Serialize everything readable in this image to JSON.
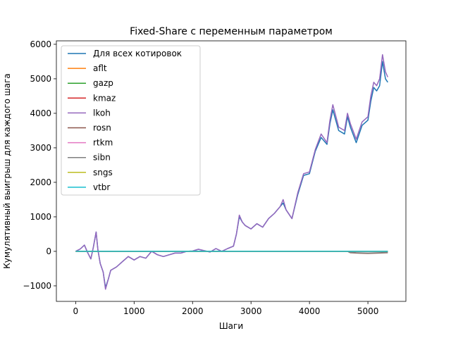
{
  "chart_data": {
    "type": "line",
    "title": "Fixed-Share с переменным параметром",
    "xlabel": "Шаги",
    "ylabel": "Кумулятивный выигрыш для каждого шага",
    "xlim": [
      -330,
      5650
    ],
    "ylim": [
      -1450,
      6100
    ],
    "xticks": [
      0,
      1000,
      2000,
      3000,
      4000,
      5000
    ],
    "yticks": [
      -1000,
      0,
      1000,
      2000,
      3000,
      4000,
      5000,
      6000
    ],
    "grid": false,
    "legend_position": "upper-left",
    "series": [
      {
        "name": "Для всех котировок",
        "color": "#1f77b4",
        "x": [
          0,
          80,
          150,
          200,
          260,
          300,
          350,
          380,
          420,
          470,
          510,
          560,
          600,
          700,
          800,
          900,
          1000,
          1100,
          1200,
          1300,
          1400,
          1500,
          1600,
          1700,
          1800,
          1900,
          2000,
          2100,
          2200,
          2300,
          2400,
          2500,
          2600,
          2700,
          2750,
          2800,
          2850,
          2900,
          3000,
          3100,
          3200,
          3300,
          3400,
          3500,
          3550,
          3600,
          3700,
          3800,
          3900,
          4000,
          4100,
          4200,
          4300,
          4350,
          4400,
          4500,
          4600,
          4650,
          4700,
          4800,
          4900,
          5000,
          5050,
          5100,
          5150,
          5200,
          5250,
          5300,
          5340
        ],
        "y": [
          0,
          70,
          180,
          -20,
          -220,
          100,
          560,
          50,
          -350,
          -600,
          -1050,
          -800,
          -550,
          -450,
          -300,
          -150,
          -250,
          -150,
          -200,
          0,
          -100,
          -150,
          -100,
          -50,
          -50,
          0,
          10,
          60,
          20,
          -20,
          80,
          0,
          80,
          150,
          500,
          1000,
          850,
          750,
          650,
          800,
          700,
          950,
          1100,
          1300,
          1400,
          1200,
          950,
          1650,
          2200,
          2250,
          2900,
          3300,
          3100,
          3700,
          4100,
          3500,
          3400,
          3900,
          3600,
          3150,
          3650,
          3800,
          4350,
          4750,
          4650,
          4800,
          5500,
          5000,
          4900
        ]
      },
      {
        "name": "aflt",
        "color": "#ff7f0e",
        "x": [
          0,
          1000,
          2000,
          3000,
          4000,
          5000,
          5340
        ],
        "y": [
          0,
          0,
          0,
          0,
          0,
          0,
          0
        ]
      },
      {
        "name": "gazp",
        "color": "#2ca02c",
        "x": [
          0,
          1000,
          2000,
          3000,
          4000,
          5000,
          5340
        ],
        "y": [
          0,
          0,
          0,
          0,
          0,
          0,
          0
        ]
      },
      {
        "name": "kmaz",
        "color": "#d62728",
        "x": [
          0,
          1000,
          2000,
          3000,
          4000,
          5000,
          5340
        ],
        "y": [
          0,
          0,
          0,
          0,
          0,
          0,
          0
        ]
      },
      {
        "name": "lkoh",
        "color": "#9467bd",
        "x": [
          0,
          80,
          150,
          200,
          260,
          300,
          350,
          380,
          420,
          470,
          510,
          560,
          600,
          700,
          800,
          900,
          1000,
          1100,
          1200,
          1300,
          1400,
          1500,
          1600,
          1700,
          1800,
          1900,
          2000,
          2100,
          2200,
          2300,
          2400,
          2500,
          2600,
          2700,
          2750,
          2800,
          2850,
          2900,
          3000,
          3100,
          3200,
          3300,
          3400,
          3500,
          3550,
          3600,
          3700,
          3800,
          3900,
          4000,
          4100,
          4200,
          4300,
          4350,
          4400,
          4500,
          4600,
          4650,
          4700,
          4800,
          4900,
          5000,
          5050,
          5100,
          5150,
          5200,
          5250,
          5300,
          5340
        ],
        "y": [
          0,
          70,
          180,
          -20,
          -220,
          100,
          560,
          50,
          -350,
          -600,
          -1100,
          -800,
          -550,
          -450,
          -300,
          -150,
          -250,
          -150,
          -200,
          0,
          -100,
          -150,
          -100,
          -50,
          -50,
          0,
          10,
          60,
          20,
          -20,
          80,
          0,
          80,
          150,
          500,
          1050,
          850,
          750,
          650,
          800,
          700,
          950,
          1100,
          1300,
          1500,
          1200,
          950,
          1700,
          2250,
          2300,
          2950,
          3400,
          3150,
          3800,
          4250,
          3600,
          3500,
          4000,
          3700,
          3250,
          3750,
          3900,
          4500,
          4900,
          4800,
          5000,
          5700,
          5200,
          5050
        ]
      },
      {
        "name": "rosn",
        "color": "#8c564b",
        "x": [
          0,
          4650,
          4700,
          4800,
          5000,
          5200,
          5340
        ],
        "y": [
          0,
          0,
          -40,
          -50,
          -60,
          -50,
          -40
        ]
      },
      {
        "name": "rtkm",
        "color": "#e377c2",
        "x": [
          0,
          1000,
          2000,
          3000,
          4000,
          5000,
          5340
        ],
        "y": [
          0,
          0,
          0,
          0,
          0,
          0,
          0
        ]
      },
      {
        "name": "sibn",
        "color": "#7f7f7f",
        "x": [
          0,
          4650,
          4700,
          4800,
          5000,
          5200,
          5340
        ],
        "y": [
          0,
          0,
          -30,
          -40,
          -50,
          -40,
          -30
        ]
      },
      {
        "name": "sngs",
        "color": "#bcbd22",
        "x": [
          0,
          1000,
          2000,
          3000,
          4000,
          5000,
          5340
        ],
        "y": [
          0,
          0,
          0,
          0,
          0,
          0,
          0
        ]
      },
      {
        "name": "vtbr",
        "color": "#17becf",
        "x": [
          0,
          1000,
          2000,
          3000,
          4000,
          5000,
          5340
        ],
        "y": [
          0,
          0,
          0,
          0,
          0,
          0,
          0
        ]
      }
    ]
  }
}
